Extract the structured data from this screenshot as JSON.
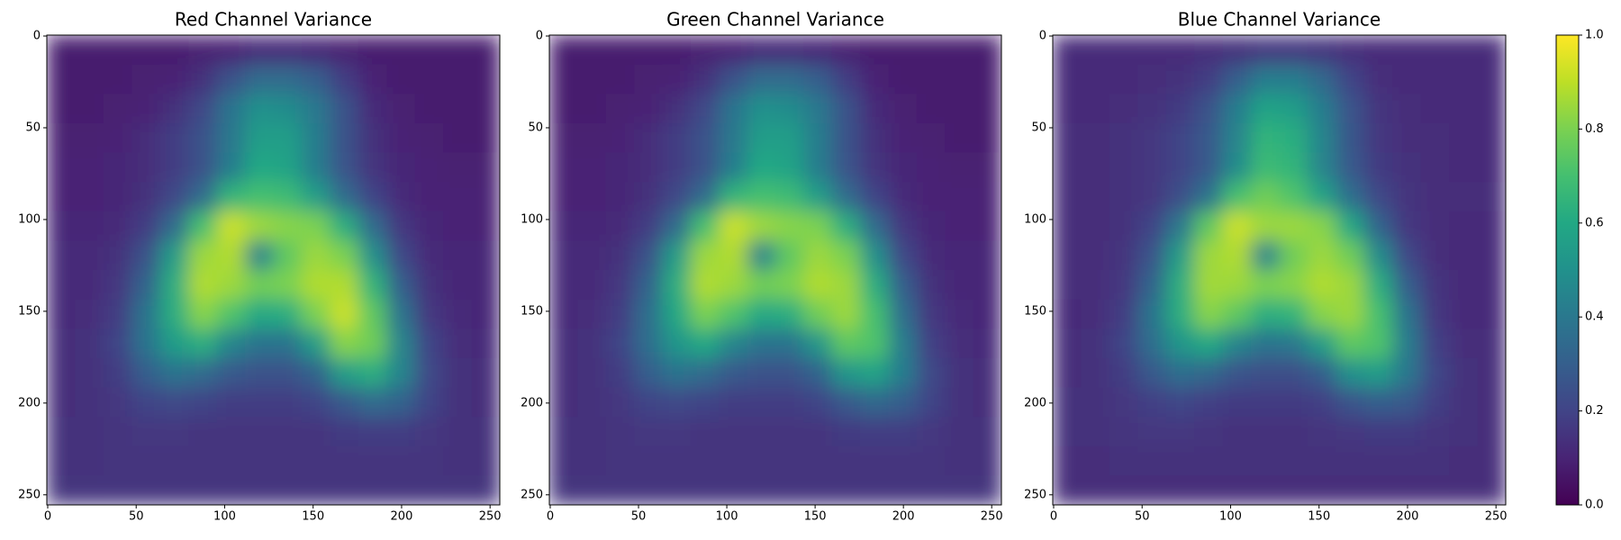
{
  "chart_data": [
    {
      "type": "heatmap",
      "title": "Red Channel Variance",
      "colormap": "viridis",
      "zlim": [
        0,
        1
      ],
      "xlim": [
        -0.5,
        255.5
      ],
      "ylim": [
        255.5,
        -0.5
      ],
      "xticks": [
        0,
        50,
        100,
        150,
        200,
        250
      ],
      "yticks": [
        0,
        50,
        100,
        150,
        200,
        250
      ],
      "values": [
        [
          0.08,
          0.08,
          0.08,
          0.08,
          0.08,
          0.09,
          0.1,
          0.12,
          0.12,
          0.11,
          0.09,
          0.08,
          0.08,
          0.08,
          0.08,
          0.08
        ],
        [
          0.08,
          0.08,
          0.08,
          0.09,
          0.1,
          0.14,
          0.25,
          0.35,
          0.35,
          0.3,
          0.18,
          0.1,
          0.08,
          0.08,
          0.08,
          0.08
        ],
        [
          0.08,
          0.08,
          0.09,
          0.1,
          0.14,
          0.22,
          0.38,
          0.5,
          0.48,
          0.4,
          0.25,
          0.12,
          0.09,
          0.08,
          0.08,
          0.08
        ],
        [
          0.09,
          0.09,
          0.1,
          0.13,
          0.18,
          0.25,
          0.4,
          0.55,
          0.55,
          0.42,
          0.25,
          0.14,
          0.1,
          0.09,
          0.08,
          0.08
        ],
        [
          0.1,
          0.1,
          0.11,
          0.13,
          0.18,
          0.25,
          0.42,
          0.6,
          0.58,
          0.42,
          0.26,
          0.15,
          0.11,
          0.1,
          0.09,
          0.09
        ],
        [
          0.1,
          0.1,
          0.11,
          0.14,
          0.22,
          0.35,
          0.65,
          0.7,
          0.68,
          0.55,
          0.35,
          0.2,
          0.12,
          0.1,
          0.1,
          0.1
        ],
        [
          0.11,
          0.11,
          0.12,
          0.18,
          0.35,
          0.7,
          0.92,
          0.85,
          0.82,
          0.8,
          0.62,
          0.35,
          0.16,
          0.11,
          0.1,
          0.1
        ],
        [
          0.12,
          0.12,
          0.14,
          0.25,
          0.55,
          0.85,
          0.88,
          0.45,
          0.75,
          0.85,
          0.8,
          0.5,
          0.22,
          0.12,
          0.11,
          0.11
        ],
        [
          0.12,
          0.12,
          0.16,
          0.32,
          0.62,
          0.88,
          0.85,
          0.78,
          0.8,
          0.88,
          0.88,
          0.65,
          0.3,
          0.14,
          0.11,
          0.11
        ],
        [
          0.12,
          0.13,
          0.18,
          0.38,
          0.62,
          0.82,
          0.72,
          0.6,
          0.62,
          0.8,
          0.92,
          0.75,
          0.38,
          0.16,
          0.12,
          0.11
        ],
        [
          0.13,
          0.14,
          0.2,
          0.38,
          0.55,
          0.62,
          0.45,
          0.38,
          0.38,
          0.55,
          0.82,
          0.78,
          0.45,
          0.2,
          0.13,
          0.12
        ],
        [
          0.13,
          0.14,
          0.18,
          0.3,
          0.38,
          0.35,
          0.28,
          0.25,
          0.25,
          0.32,
          0.55,
          0.62,
          0.45,
          0.22,
          0.14,
          0.13
        ],
        [
          0.13,
          0.14,
          0.16,
          0.2,
          0.22,
          0.2,
          0.18,
          0.18,
          0.18,
          0.2,
          0.28,
          0.35,
          0.32,
          0.2,
          0.14,
          0.13
        ],
        [
          0.14,
          0.14,
          0.15,
          0.16,
          0.16,
          0.15,
          0.15,
          0.15,
          0.15,
          0.15,
          0.17,
          0.18,
          0.18,
          0.16,
          0.14,
          0.14
        ],
        [
          0.14,
          0.14,
          0.15,
          0.15,
          0.15,
          0.15,
          0.15,
          0.15,
          0.15,
          0.15,
          0.15,
          0.15,
          0.15,
          0.15,
          0.14,
          0.14
        ],
        [
          0.15,
          0.15,
          0.15,
          0.15,
          0.15,
          0.15,
          0.15,
          0.15,
          0.15,
          0.15,
          0.15,
          0.15,
          0.15,
          0.15,
          0.15,
          0.15
        ]
      ]
    },
    {
      "type": "heatmap",
      "title": "Green Channel Variance",
      "colormap": "viridis",
      "zlim": [
        0,
        1
      ],
      "xlim": [
        -0.5,
        255.5
      ],
      "ylim": [
        255.5,
        -0.5
      ],
      "xticks": [
        0,
        50,
        100,
        150,
        200,
        250
      ],
      "yticks": [
        0,
        50,
        100,
        150,
        200,
        250
      ],
      "values": [
        [
          0.08,
          0.08,
          0.08,
          0.08,
          0.08,
          0.09,
          0.1,
          0.12,
          0.12,
          0.11,
          0.09,
          0.08,
          0.08,
          0.08,
          0.08,
          0.08
        ],
        [
          0.08,
          0.08,
          0.08,
          0.09,
          0.1,
          0.14,
          0.25,
          0.35,
          0.35,
          0.3,
          0.18,
          0.1,
          0.08,
          0.08,
          0.08,
          0.08
        ],
        [
          0.08,
          0.08,
          0.09,
          0.1,
          0.14,
          0.22,
          0.38,
          0.5,
          0.48,
          0.4,
          0.25,
          0.12,
          0.09,
          0.08,
          0.08,
          0.08
        ],
        [
          0.09,
          0.09,
          0.1,
          0.13,
          0.18,
          0.25,
          0.4,
          0.55,
          0.55,
          0.42,
          0.25,
          0.14,
          0.1,
          0.09,
          0.08,
          0.08
        ],
        [
          0.1,
          0.1,
          0.11,
          0.13,
          0.18,
          0.25,
          0.42,
          0.6,
          0.58,
          0.42,
          0.26,
          0.15,
          0.11,
          0.1,
          0.09,
          0.09
        ],
        [
          0.1,
          0.1,
          0.11,
          0.14,
          0.22,
          0.35,
          0.65,
          0.7,
          0.68,
          0.55,
          0.35,
          0.2,
          0.12,
          0.1,
          0.1,
          0.1
        ],
        [
          0.11,
          0.11,
          0.12,
          0.18,
          0.35,
          0.7,
          0.92,
          0.85,
          0.82,
          0.8,
          0.62,
          0.35,
          0.16,
          0.11,
          0.1,
          0.1
        ],
        [
          0.12,
          0.12,
          0.14,
          0.25,
          0.55,
          0.85,
          0.88,
          0.45,
          0.75,
          0.85,
          0.8,
          0.5,
          0.22,
          0.12,
          0.11,
          0.11
        ],
        [
          0.12,
          0.12,
          0.16,
          0.32,
          0.62,
          0.88,
          0.85,
          0.78,
          0.8,
          0.88,
          0.85,
          0.62,
          0.3,
          0.14,
          0.11,
          0.11
        ],
        [
          0.12,
          0.13,
          0.18,
          0.36,
          0.6,
          0.8,
          0.72,
          0.6,
          0.62,
          0.78,
          0.85,
          0.7,
          0.36,
          0.16,
          0.12,
          0.11
        ],
        [
          0.13,
          0.14,
          0.2,
          0.36,
          0.52,
          0.6,
          0.45,
          0.38,
          0.38,
          0.52,
          0.75,
          0.72,
          0.42,
          0.19,
          0.13,
          0.12
        ],
        [
          0.13,
          0.14,
          0.18,
          0.3,
          0.38,
          0.35,
          0.28,
          0.25,
          0.25,
          0.32,
          0.52,
          0.58,
          0.42,
          0.22,
          0.14,
          0.13
        ],
        [
          0.13,
          0.14,
          0.16,
          0.2,
          0.22,
          0.2,
          0.18,
          0.18,
          0.18,
          0.2,
          0.28,
          0.33,
          0.3,
          0.2,
          0.14,
          0.13
        ],
        [
          0.14,
          0.14,
          0.15,
          0.16,
          0.16,
          0.15,
          0.15,
          0.15,
          0.15,
          0.15,
          0.17,
          0.18,
          0.18,
          0.16,
          0.14,
          0.14
        ],
        [
          0.14,
          0.14,
          0.15,
          0.15,
          0.15,
          0.15,
          0.15,
          0.15,
          0.15,
          0.15,
          0.15,
          0.15,
          0.15,
          0.15,
          0.14,
          0.14
        ],
        [
          0.15,
          0.15,
          0.15,
          0.15,
          0.15,
          0.15,
          0.15,
          0.15,
          0.15,
          0.15,
          0.15,
          0.15,
          0.15,
          0.15,
          0.15,
          0.15
        ]
      ]
    },
    {
      "type": "heatmap",
      "title": "Blue Channel Variance",
      "colormap": "viridis",
      "zlim": [
        0,
        1
      ],
      "xlim": [
        -0.5,
        255.5
      ],
      "ylim": [
        255.5,
        -0.5
      ],
      "xticks": [
        0,
        50,
        100,
        150,
        200,
        250
      ],
      "yticks": [
        0,
        50,
        100,
        150,
        200,
        250
      ],
      "values": [
        [
          0.12,
          0.12,
          0.12,
          0.12,
          0.12,
          0.13,
          0.14,
          0.16,
          0.16,
          0.15,
          0.13,
          0.12,
          0.12,
          0.12,
          0.12,
          0.12
        ],
        [
          0.12,
          0.12,
          0.12,
          0.13,
          0.14,
          0.18,
          0.3,
          0.42,
          0.42,
          0.34,
          0.2,
          0.13,
          0.12,
          0.12,
          0.12,
          0.12
        ],
        [
          0.12,
          0.12,
          0.13,
          0.14,
          0.17,
          0.25,
          0.42,
          0.58,
          0.55,
          0.42,
          0.26,
          0.15,
          0.13,
          0.12,
          0.12,
          0.12
        ],
        [
          0.13,
          0.13,
          0.14,
          0.16,
          0.2,
          0.28,
          0.45,
          0.65,
          0.62,
          0.45,
          0.27,
          0.16,
          0.13,
          0.13,
          0.12,
          0.12
        ],
        [
          0.13,
          0.13,
          0.14,
          0.16,
          0.2,
          0.28,
          0.48,
          0.68,
          0.65,
          0.45,
          0.28,
          0.17,
          0.14,
          0.13,
          0.12,
          0.12
        ],
        [
          0.13,
          0.13,
          0.14,
          0.16,
          0.24,
          0.38,
          0.7,
          0.78,
          0.72,
          0.58,
          0.36,
          0.22,
          0.15,
          0.13,
          0.13,
          0.13
        ],
        [
          0.13,
          0.13,
          0.14,
          0.2,
          0.4,
          0.75,
          0.92,
          0.85,
          0.85,
          0.82,
          0.6,
          0.32,
          0.16,
          0.13,
          0.12,
          0.12
        ],
        [
          0.13,
          0.13,
          0.15,
          0.26,
          0.55,
          0.85,
          0.88,
          0.45,
          0.78,
          0.85,
          0.78,
          0.48,
          0.22,
          0.13,
          0.12,
          0.12
        ],
        [
          0.13,
          0.13,
          0.16,
          0.32,
          0.62,
          0.86,
          0.85,
          0.8,
          0.82,
          0.88,
          0.85,
          0.62,
          0.3,
          0.15,
          0.12,
          0.12
        ],
        [
          0.12,
          0.13,
          0.18,
          0.38,
          0.62,
          0.82,
          0.75,
          0.62,
          0.65,
          0.82,
          0.85,
          0.7,
          0.38,
          0.16,
          0.12,
          0.12
        ],
        [
          0.13,
          0.14,
          0.2,
          0.36,
          0.52,
          0.6,
          0.45,
          0.38,
          0.4,
          0.55,
          0.75,
          0.72,
          0.42,
          0.19,
          0.13,
          0.13
        ],
        [
          0.13,
          0.14,
          0.18,
          0.28,
          0.36,
          0.33,
          0.26,
          0.24,
          0.24,
          0.3,
          0.5,
          0.55,
          0.4,
          0.21,
          0.14,
          0.13
        ],
        [
          0.14,
          0.14,
          0.16,
          0.19,
          0.21,
          0.19,
          0.17,
          0.17,
          0.17,
          0.19,
          0.26,
          0.3,
          0.28,
          0.19,
          0.14,
          0.13
        ],
        [
          0.14,
          0.14,
          0.15,
          0.16,
          0.16,
          0.15,
          0.14,
          0.14,
          0.14,
          0.15,
          0.16,
          0.17,
          0.17,
          0.15,
          0.14,
          0.13
        ],
        [
          0.13,
          0.13,
          0.14,
          0.14,
          0.14,
          0.14,
          0.14,
          0.14,
          0.14,
          0.14,
          0.14,
          0.14,
          0.14,
          0.14,
          0.13,
          0.13
        ],
        [
          0.13,
          0.13,
          0.13,
          0.13,
          0.13,
          0.13,
          0.13,
          0.13,
          0.13,
          0.13,
          0.13,
          0.13,
          0.13,
          0.13,
          0.13,
          0.13
        ]
      ]
    },
    {
      "type": "colorbar",
      "colormap": "viridis",
      "ylim": [
        0,
        1
      ],
      "yticks": [
        {
          "value": 0,
          "label": "0.0"
        },
        {
          "value": 0.2,
          "label": "0.2"
        },
        {
          "value": 0.4,
          "label": "0.4"
        },
        {
          "value": 0.6,
          "label": "0.6"
        },
        {
          "value": 0.8,
          "label": "0.8"
        },
        {
          "value": 1,
          "label": "1.0"
        }
      ]
    }
  ]
}
